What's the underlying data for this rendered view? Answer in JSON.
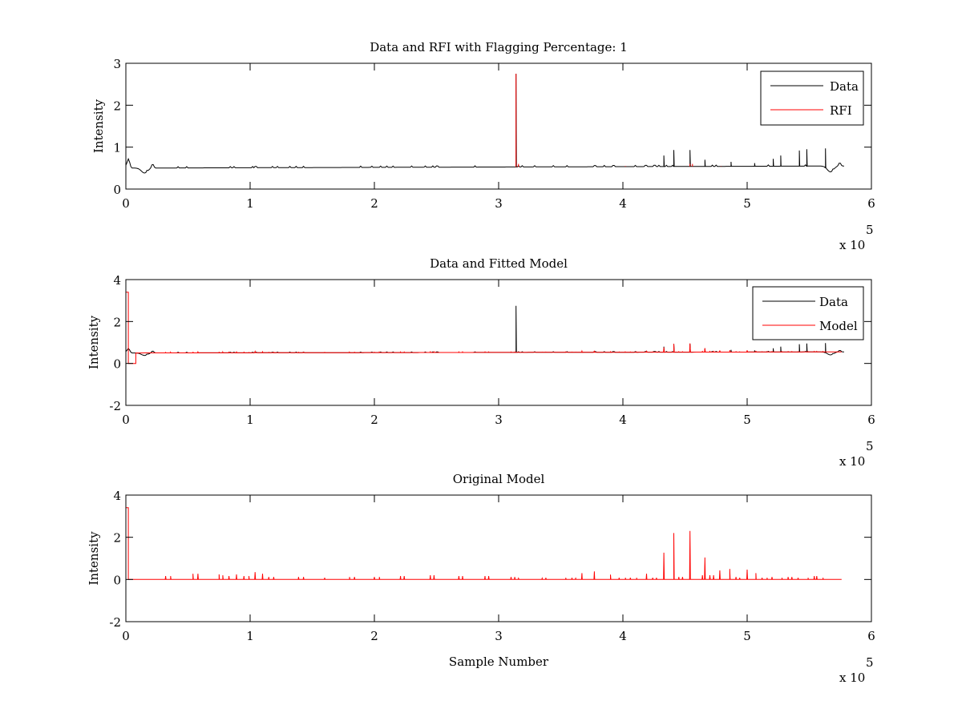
{
  "chart_data": [
    {
      "type": "line",
      "title": "Data and RFI with Flagging Percentage: 1",
      "xlabel": "",
      "ylabel": "Intensity",
      "xlim": [
        0,
        600000
      ],
      "ylim": [
        0,
        3
      ],
      "xticks": [
        "0",
        "1",
        "2",
        "3",
        "4",
        "5",
        "6"
      ],
      "yticks": [
        "0",
        "1",
        "2",
        "3"
      ],
      "x_exponent_label": "x 10",
      "x_exponent": "5",
      "legend": {
        "placement": "top-right",
        "entries": [
          "Data",
          "RFI"
        ]
      },
      "series": [
        {
          "name": "Data",
          "color": "#000000",
          "baseline_start": 0.5,
          "baseline_end": 0.55,
          "x_end": 578000,
          "spikes_x": [
            314000,
            433000,
            441000,
            454000,
            466000,
            487000,
            506000,
            521000,
            527000,
            542000,
            548000,
            563000
          ],
          "spikes_y": [
            2.75,
            0.8,
            0.93,
            0.93,
            0.7,
            0.65,
            0.62,
            0.72,
            0.8,
            0.92,
            0.95,
            0.97
          ]
        },
        {
          "name": "RFI",
          "color": "#ff0000",
          "spikes_x": [
            314000,
            316000,
            402000,
            454000,
            456000,
            479000
          ],
          "spikes_y": [
            2.75,
            0.6,
            0.55,
            0.6,
            0.6,
            0.55
          ]
        }
      ]
    },
    {
      "type": "line",
      "title": "Data and Fitted Model",
      "xlabel": "",
      "ylabel": "Intensity",
      "xlim": [
        0,
        600000
      ],
      "ylim": [
        -2,
        4
      ],
      "xticks": [
        "0",
        "1",
        "2",
        "3",
        "4",
        "5",
        "6"
      ],
      "yticks": [
        "-2",
        "0",
        "2",
        "4"
      ],
      "x_exponent_label": "x 10",
      "x_exponent": "5",
      "legend": {
        "placement": "top-right",
        "entries": [
          "Data",
          "Model"
        ]
      },
      "series": [
        {
          "name": "Data",
          "color": "#000000"
        },
        {
          "name": "Model",
          "color": "#ff0000",
          "start_value": 3.4,
          "gap_value": 0,
          "baseline": 0.5
        }
      ]
    },
    {
      "type": "line",
      "title": "Original Model",
      "xlabel": "Sample Number",
      "ylabel": "Intensity",
      "xlim": [
        0,
        600000
      ],
      "ylim": [
        -2,
        4
      ],
      "xticks": [
        "0",
        "1",
        "2",
        "3",
        "4",
        "5",
        "6"
      ],
      "yticks": [
        "-2",
        "0",
        "2",
        "4"
      ],
      "x_exponent_label": "x 10",
      "x_exponent": "5",
      "series": [
        {
          "name": "Original Model",
          "color": "#ff0000",
          "start_value": 3.4,
          "spikes_x": [
            32000,
            36000,
            54000,
            58000,
            75000,
            78000,
            83000,
            89000,
            95000,
            99000,
            104000,
            110000,
            115000,
            119000,
            139000,
            143000,
            160000,
            180000,
            184000,
            200000,
            204000,
            221000,
            224000,
            245000,
            248000,
            268000,
            271000,
            289000,
            292000,
            310000,
            313000,
            316000,
            335000,
            338000,
            354000,
            359000,
            362000,
            367000,
            377000,
            390000,
            397000,
            402000,
            406000,
            411000,
            419000,
            424000,
            427000,
            433000,
            441000,
            445000,
            448000,
            454000,
            464000,
            466000,
            470000,
            473000,
            478000,
            486000,
            491000,
            494000,
            500000,
            507000,
            512000,
            516000,
            520000,
            528000,
            533000,
            536000,
            541000,
            549000,
            554000,
            556000,
            561000
          ],
          "spikes_y": [
            0.16,
            0.16,
            0.27,
            0.27,
            0.24,
            0.2,
            0.16,
            0.24,
            0.16,
            0.16,
            0.35,
            0.27,
            0.12,
            0.12,
            0.12,
            0.12,
            0.08,
            0.12,
            0.12,
            0.12,
            0.12,
            0.16,
            0.16,
            0.2,
            0.2,
            0.16,
            0.16,
            0.16,
            0.16,
            0.12,
            0.12,
            0.06,
            0.06,
            0.08,
            0.08,
            0.08,
            0.06,
            0.3,
            0.38,
            0.23,
            0.08,
            0.08,
            0.08,
            0.08,
            0.27,
            0.08,
            0.08,
            1.27,
            2.2,
            0.12,
            0.12,
            2.3,
            0.2,
            1.04,
            0.2,
            0.2,
            0.43,
            0.5,
            0.12,
            0.08,
            0.47,
            0.3,
            0.08,
            0.08,
            0.12,
            0.08,
            0.12,
            0.12,
            0.08,
            0.08,
            0.16,
            0.16,
            0.08
          ],
          "x_end": 578000
        }
      ]
    }
  ]
}
